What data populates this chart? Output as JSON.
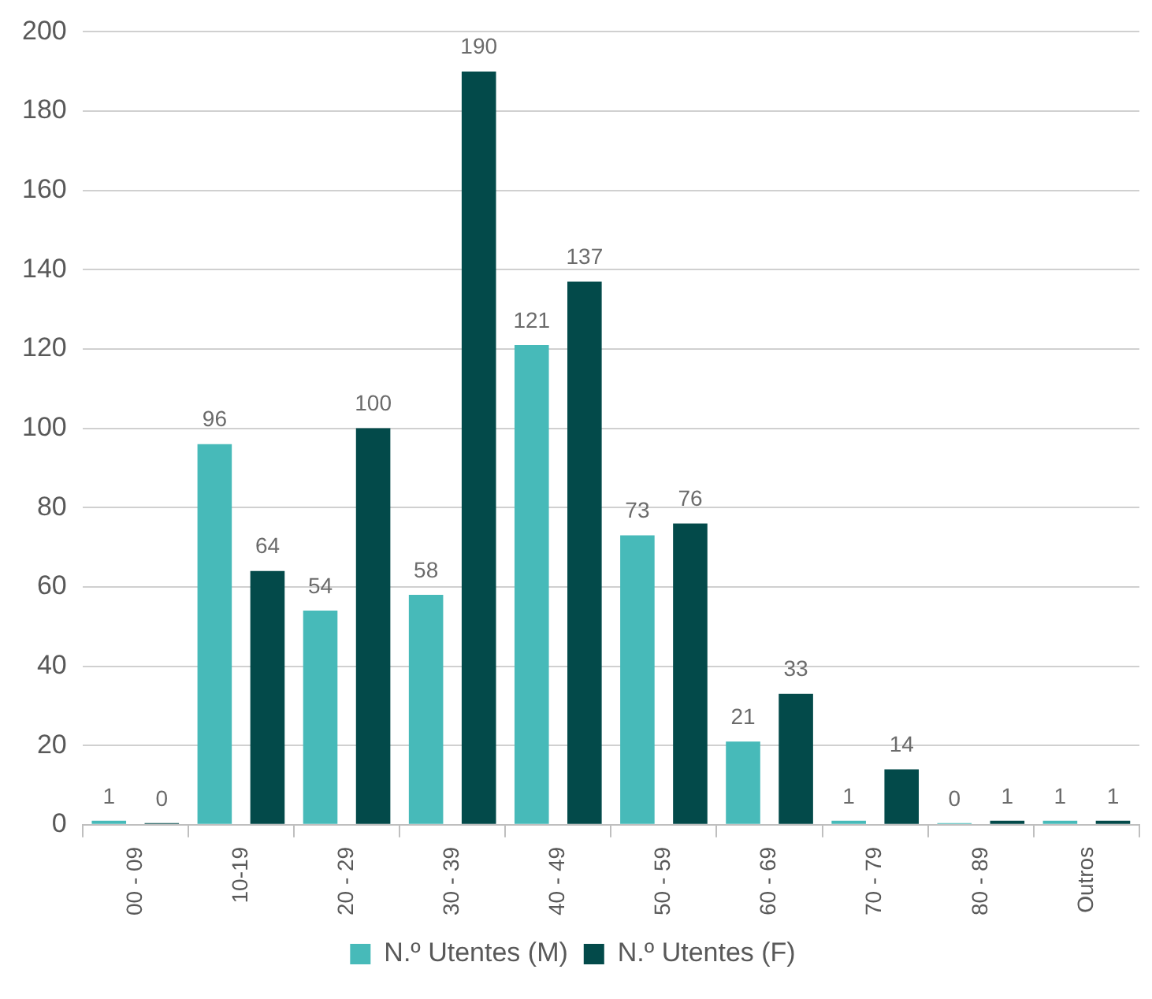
{
  "chart_data": {
    "type": "bar",
    "categories": [
      "00 - 09",
      "10-19",
      "20 - 29",
      "30 - 39",
      "40 - 49",
      "50 - 59",
      "60 - 69",
      "70 - 79",
      "80 - 89",
      "Outros"
    ],
    "series": [
      {
        "name": "N.º Utentes (M)",
        "color": "#47bab9",
        "values": [
          1,
          96,
          54,
          58,
          121,
          73,
          21,
          1,
          0,
          1
        ]
      },
      {
        "name": "N.º Utentes (F)",
        "color": "#034a4a",
        "values": [
          0,
          64,
          100,
          190,
          137,
          76,
          33,
          14,
          1,
          1
        ]
      }
    ],
    "ylim": [
      0,
      200
    ],
    "yticks": [
      0,
      20,
      40,
      60,
      80,
      100,
      120,
      140,
      160,
      180,
      200
    ],
    "grid": "y",
    "legend": "bottom",
    "data_labels": true
  }
}
